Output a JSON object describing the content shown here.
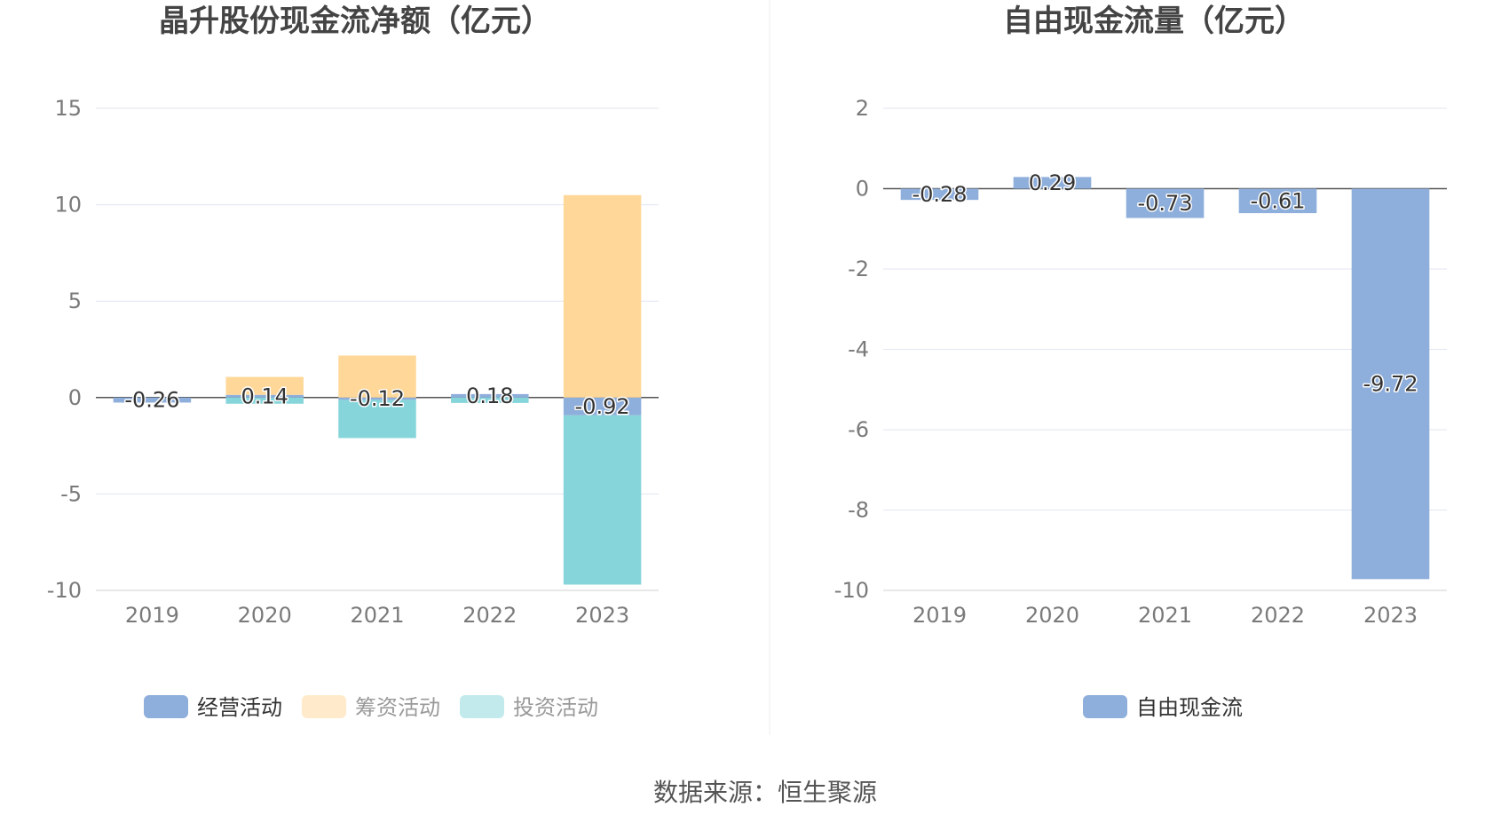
{
  "charts": {
    "left": {
      "title": "晶升股份现金流净额（亿元）",
      "type": "bar",
      "stacked": true,
      "categories": [
        "2019",
        "2020",
        "2021",
        "2022",
        "2023"
      ],
      "y_ticks": [
        "15",
        "10",
        "5",
        "0",
        "-5",
        "-10"
      ],
      "ylim": [
        -10,
        15
      ],
      "series": [
        {
          "name": "经营活动",
          "color": "#8eaedb",
          "legend_text_color": "#333333",
          "values": [
            -0.26,
            0.14,
            -0.12,
            0.18,
            -0.92
          ]
        },
        {
          "name": "筹资活动",
          "color": "#ffd899",
          "legend_text_color": "#999999",
          "values": [
            0,
            0.93,
            2.18,
            0,
            10.5
          ]
        },
        {
          "name": "投资活动",
          "color": "#86d5da",
          "legend_text_color": "#999999",
          "values": [
            0,
            -0.32,
            -1.98,
            -0.28,
            -8.78
          ]
        }
      ],
      "labels": [
        "-0.26",
        "0.14",
        "-0.12",
        "0.18",
        "-0.92"
      ]
    },
    "right": {
      "title": "自由现金流量（亿元）",
      "type": "bar",
      "categories": [
        "2019",
        "2020",
        "2021",
        "2022",
        "2023"
      ],
      "y_ticks": [
        "2",
        "0",
        "-2",
        "-4",
        "-6",
        "-8",
        "-10"
      ],
      "ylim": [
        -10,
        2
      ],
      "series": [
        {
          "name": "自由现金流",
          "color": "#8eaedb",
          "legend_text_color": "#333333",
          "values": [
            -0.28,
            0.29,
            -0.73,
            -0.61,
            -9.72
          ]
        }
      ],
      "labels": [
        "-0.28",
        "0.29",
        "-0.73",
        "-0.61",
        "-9.72"
      ]
    }
  },
  "chart_data": [
    {
      "type": "bar",
      "title": "晶升股份现金流净额（亿元）",
      "categories": [
        "2019",
        "2020",
        "2021",
        "2022",
        "2023"
      ],
      "series": [
        {
          "name": "经营活动",
          "values": [
            -0.26,
            0.14,
            -0.12,
            0.18,
            -0.92
          ]
        },
        {
          "name": "筹资活动",
          "values": [
            0,
            0.93,
            2.18,
            0,
            10.5
          ]
        },
        {
          "name": "投资活动",
          "values": [
            0,
            -0.32,
            -1.98,
            -0.28,
            -8.78
          ]
        }
      ],
      "ylim": [
        -10,
        15
      ],
      "grid": true,
      "legend": "bottom"
    },
    {
      "type": "bar",
      "title": "自由现金流量（亿元）",
      "categories": [
        "2019",
        "2020",
        "2021",
        "2022",
        "2023"
      ],
      "series": [
        {
          "name": "自由现金流",
          "values": [
            -0.28,
            0.29,
            -0.73,
            -0.61,
            -9.72
          ]
        }
      ],
      "ylim": [
        -10,
        2
      ],
      "grid": true,
      "legend": "bottom"
    }
  ],
  "source": "数据来源：恒生聚源"
}
